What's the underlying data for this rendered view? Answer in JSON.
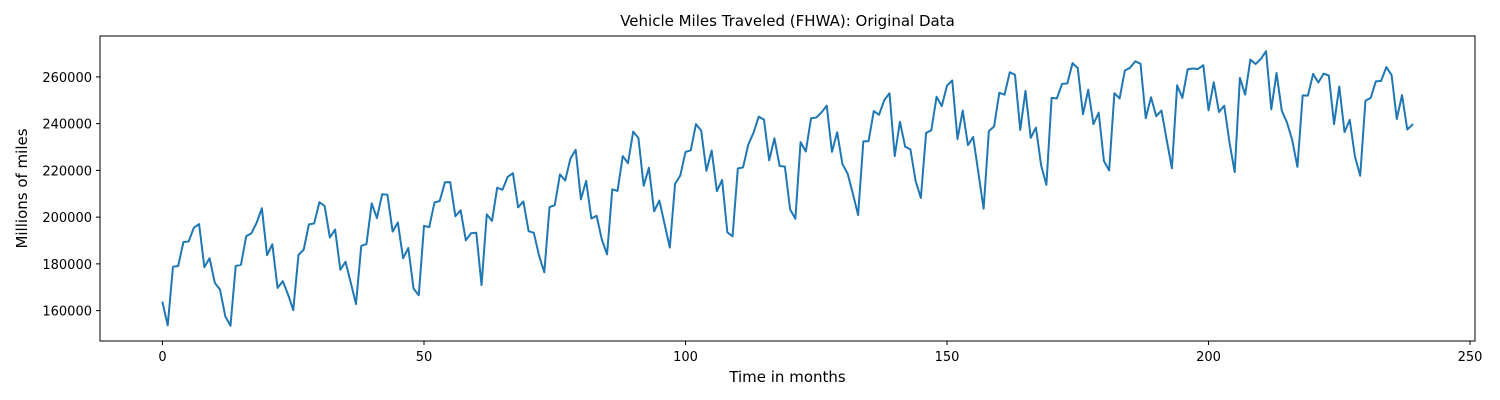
{
  "chart_data": {
    "type": "line",
    "title": "Vehicle Miles Traveled (FHWA): Original Data",
    "xlabel": "Time in months",
    "ylabel": "Millions of miles",
    "xlim": [
      -11.95,
      250.95
    ],
    "ylim": [
      147000,
      277500
    ],
    "xticks": [
      0,
      50,
      100,
      150,
      200,
      250
    ],
    "yticks": [
      160000,
      180000,
      200000,
      220000,
      240000,
      260000
    ],
    "grid": false,
    "line_color": "#1f77b4",
    "series": [
      {
        "x": [
          0,
          1,
          2,
          3,
          4,
          5,
          6,
          7,
          8,
          9,
          10,
          11,
          12,
          13,
          14,
          15,
          16,
          17,
          18,
          19,
          20,
          21,
          22,
          23,
          24,
          25,
          26,
          27,
          28,
          29,
          30,
          31,
          32,
          33,
          34,
          35,
          36,
          37,
          38,
          39,
          40,
          41,
          42,
          43,
          44,
          45,
          46,
          47,
          48,
          49,
          50,
          51,
          52,
          53,
          54,
          55,
          56,
          57,
          58,
          59,
          60,
          61,
          62,
          63,
          64,
          65,
          66,
          67,
          68,
          69,
          70,
          71,
          72,
          73,
          74,
          75,
          76,
          77,
          78,
          79,
          80,
          81,
          82,
          83,
          84,
          85,
          86,
          87,
          88,
          89,
          90,
          91,
          92,
          93,
          94,
          95,
          96,
          97,
          98,
          99,
          100,
          101,
          102,
          103,
          104,
          105,
          106,
          107,
          108,
          109,
          110,
          111,
          112,
          113,
          114,
          115,
          116,
          117,
          118,
          119,
          120,
          121,
          122,
          123,
          124,
          125,
          126,
          127,
          128,
          129,
          130,
          131,
          132,
          133,
          134,
          135,
          136,
          137,
          138,
          139,
          140,
          141,
          142,
          143,
          144,
          145,
          146,
          147,
          148,
          149,
          150,
          151,
          152,
          153,
          154,
          155,
          156,
          157,
          158,
          159,
          160,
          161,
          162,
          163,
          164,
          165,
          166,
          167,
          168,
          169,
          170,
          171,
          172,
          173,
          174,
          175,
          176,
          177,
          178,
          179,
          180,
          181,
          182,
          183,
          184,
          185,
          186,
          187,
          188,
          189,
          190,
          191,
          192,
          193,
          194,
          195,
          196,
          197,
          198,
          199,
          200,
          201,
          202,
          203,
          204,
          205,
          206,
          207,
          208,
          209,
          210,
          211,
          212,
          213,
          214,
          215,
          216,
          217,
          218,
          219,
          220,
          221,
          222,
          223,
          224,
          225,
          226,
          227,
          228,
          229,
          230,
          231,
          232,
          233,
          234,
          235,
          236,
          237,
          238,
          239
        ],
        "y": [
          163500,
          153700,
          178800,
          179100,
          189300,
          189600,
          195500,
          197000,
          178600,
          182400,
          171900,
          169000,
          157600,
          153500,
          179100,
          179600,
          191800,
          193100,
          197600,
          203800,
          183700,
          188400,
          169700,
          172600,
          166900,
          160200,
          183800,
          186100,
          196900,
          197300,
          206400,
          204800,
          191300,
          194700,
          177500,
          180900,
          171900,
          162800,
          187700,
          188500,
          205900,
          199600,
          209800,
          209600,
          193800,
          197700,
          182400,
          186800,
          169400,
          166600,
          196300,
          195700,
          206300,
          206900,
          214900,
          215000,
          200400,
          202900,
          190100,
          193100,
          193300,
          170900,
          201200,
          198400,
          212600,
          211700,
          217200,
          218800,
          204200,
          206700,
          194000,
          193300,
          183500,
          176400,
          204300,
          205100,
          218300,
          215700,
          225100,
          228800,
          207600,
          215500,
          199400,
          200600,
          190400,
          184100,
          211900,
          211200,
          226100,
          223100,
          236600,
          233800,
          213400,
          221100,
          202500,
          207100,
          197000,
          187000,
          214200,
          217800,
          227900,
          228600,
          239800,
          237000,
          219800,
          228500,
          211100,
          215900,
          193500,
          191800,
          220800,
          221300,
          231000,
          236100,
          243000,
          241700,
          224300,
          233700,
          221900,
          221600,
          203300,
          199300,
          232100,
          228100,
          242300,
          242600,
          244800,
          247700,
          227900,
          236300,
          222700,
          218600,
          210000,
          200900,
          232400,
          232500,
          245400,
          243800,
          250000,
          253000,
          226100,
          240800,
          230100,
          229000,
          215400,
          208200,
          236000,
          237200,
          251500,
          247500,
          256300,
          258500,
          233400,
          245600,
          230800,
          234300,
          218900,
          203600,
          236800,
          238800,
          253200,
          252400,
          262000,
          260900,
          237300,
          254000,
          233900,
          238300,
          222100,
          213800,
          251000,
          250800,
          257000,
          257200,
          265900,
          263700,
          244000,
          254500,
          239800,
          244700,
          224000,
          220000,
          253000,
          250800,
          262700,
          263900,
          266700,
          265600,
          242300,
          251300,
          243200,
          245600,
          233100,
          220900,
          256400,
          251000,
          263200,
          263600,
          263400,
          265000,
          245700,
          257700,
          245000,
          247700,
          232100,
          219300,
          259600,
          252400,
          267400,
          265500,
          267700,
          271000,
          246100,
          261700,
          245600,
          240500,
          233000,
          221500,
          252100,
          252000,
          261300,
          257600,
          261400,
          260600,
          239800,
          255900,
          236400,
          241600,
          225900,
          217700,
          249800,
          251000,
          258100,
          258300,
          264200,
          260800,
          242000,
          252200,
          237500,
          239600
        ]
      }
    ]
  }
}
